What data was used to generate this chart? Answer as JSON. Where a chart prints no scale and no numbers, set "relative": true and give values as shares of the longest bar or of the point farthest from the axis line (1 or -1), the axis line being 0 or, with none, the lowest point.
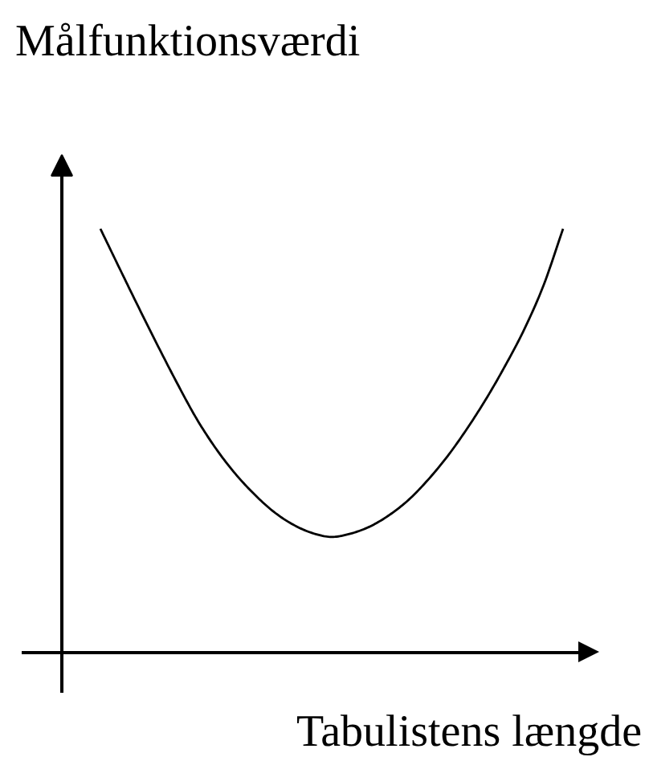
{
  "chart_data": {
    "type": "line",
    "title": "Målfunktionsværdi",
    "xlabel": "Tabulistens længde",
    "relative": true,
    "line_style": "solid",
    "categories": [
      null,
      null,
      null,
      null,
      null,
      null,
      null,
      null,
      null,
      null,
      null,
      null,
      null,
      null,
      null,
      null,
      null,
      null,
      null,
      null,
      null,
      null,
      null,
      null,
      null
    ],
    "series": [
      {
        "color": "#000000",
        "values": [
          1.0,
          0.906,
          0.813,
          0.722,
          0.634,
          0.551,
          0.481,
          0.422,
          0.373,
          0.332,
          0.302,
          0.282,
          0.273,
          0.281,
          0.298,
          0.325,
          0.361,
          0.408,
          0.463,
          0.527,
          0.598,
          0.677,
          0.764,
          0.868,
          1.0
        ]
      }
    ]
  }
}
